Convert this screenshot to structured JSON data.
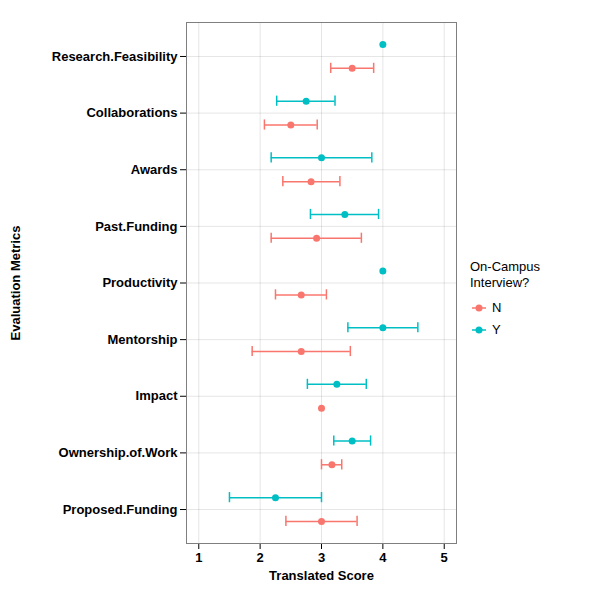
{
  "chart_data": {
    "type": "dot",
    "x_label": "Translated Score",
    "y_label": "Evaluation Metrics",
    "legend_title": "On-Campus Interview?",
    "categories": [
      "Research.Feasibility",
      "Collaborations",
      "Awards",
      "Past.Funding",
      "Productivity",
      "Mentorship",
      "Impact",
      "Ownership.of.Work",
      "Proposed.Funding"
    ],
    "series": [
      {
        "name": "N",
        "color": "#F8766D",
        "values": [
          3.5,
          2.5,
          2.83,
          2.92,
          2.67,
          2.67,
          3.0,
          3.17,
          3.0
        ],
        "lower": [
          3.15,
          2.07,
          2.37,
          2.18,
          2.25,
          1.87,
          null,
          3.0,
          2.42
        ],
        "upper": [
          3.85,
          2.93,
          3.3,
          3.65,
          3.08,
          3.47,
          null,
          3.33,
          3.58
        ]
      },
      {
        "name": "Y",
        "color": "#00BFC4",
        "values": [
          4.0,
          2.75,
          3.0,
          3.38,
          4.0,
          4.0,
          3.25,
          3.5,
          2.25
        ],
        "lower": [
          null,
          2.27,
          2.18,
          2.82,
          null,
          3.43,
          2.77,
          3.2,
          1.5
        ],
        "upper": [
          null,
          3.22,
          3.82,
          3.93,
          null,
          4.57,
          3.73,
          3.8,
          3.0
        ]
      }
    ],
    "xlim": [
      0.8,
      5.2
    ],
    "xticks": [
      1,
      2,
      3,
      4,
      5
    ],
    "grid": true,
    "legend": "right",
    "marker": "circle"
  }
}
